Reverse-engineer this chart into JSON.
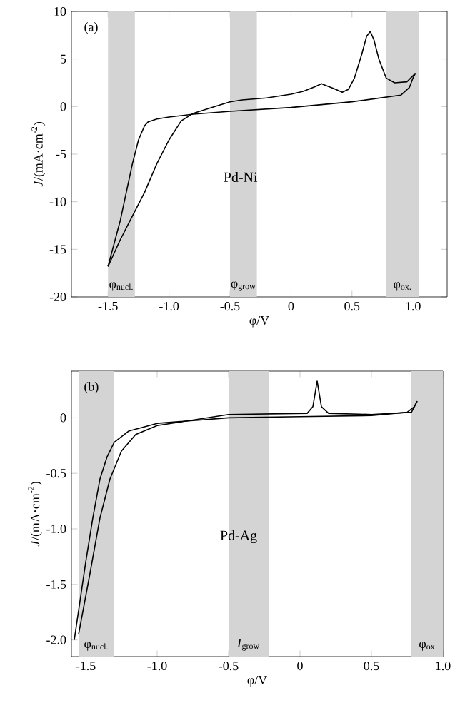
{
  "chart_data": [
    {
      "type": "line",
      "xlabel": "φ/V",
      "ylabel": "*J*/(mA·cm$^{-2}$)",
      "xlim": [
        -1.8,
        1.28
      ],
      "ylim": [
        -20,
        10
      ],
      "xticks": [
        {
          "value": -1.5,
          "label": "-1.5"
        },
        {
          "value": -1.0,
          "label": "-1.0"
        },
        {
          "value": -0.5,
          "label": "-0.5"
        },
        0,
        0.5,
        {
          "value": 1.0,
          "label": "1.0"
        }
      ],
      "yticks": [
        -20,
        -15,
        -10,
        -5,
        0,
        5,
        10
      ],
      "series": [
        {
          "color": "#000000",
          "x": [
            -1.5,
            -1.4,
            -1.3,
            -1.25,
            -1.2,
            -1.17,
            -1.1,
            -1.0,
            -0.8,
            -0.5,
            0,
            0.5,
            0.9,
            0.97,
            1.0,
            1.02
          ],
          "values": [
            -16.8,
            -12,
            -6,
            -3.5,
            -2,
            -1.6,
            -1.3,
            -1.1,
            -0.8,
            -0.5,
            -0.1,
            0.5,
            1.2,
            2.0,
            3.0,
            3.5
          ]
        },
        {
          "color": "#000000",
          "x": [
            1.02,
            0.95,
            0.85,
            0.78,
            0.72,
            0.68,
            0.65,
            0.62,
            0.58,
            0.52,
            0.47,
            0.42,
            0.35,
            0.27,
            0.25,
            0.2,
            0.1,
            0,
            -0.2,
            -0.4,
            -0.5,
            -0.6,
            -0.7,
            -0.8,
            -0.9,
            -1.0,
            -1.1,
            -1.2,
            -1.3,
            -1.4,
            -1.5
          ],
          "values": [
            3.5,
            2.6,
            2.5,
            3,
            5,
            7,
            7.9,
            7.4,
            5.5,
            3,
            1.8,
            1.5,
            1.9,
            2.3,
            2.4,
            2.1,
            1.6,
            1.3,
            0.9,
            0.7,
            0.5,
            0.1,
            -0.3,
            -0.7,
            -1.5,
            -3.5,
            -6,
            -9,
            -11.5,
            -14,
            -16.8
          ]
        }
      ],
      "bands": [
        {
          "axis": "x",
          "from": -1.5,
          "to": -1.28,
          "label": "φ$_{nucl.}$",
          "color": "#d4d4d4"
        },
        {
          "axis": "x",
          "from": -0.5,
          "to": -0.28,
          "label": "φ$_{grow}$",
          "color": "#d4d4d4"
        },
        {
          "axis": "x",
          "from": 0.78,
          "to": 1.05,
          "label": "φ$_{ox.}$",
          "color": "#d4d4d4"
        }
      ],
      "annotations": [
        "(a)",
        "Pd-Ni"
      ]
    },
    {
      "type": "line",
      "xlabel": "φ/V",
      "ylabel": "*J*/(mA·cm$^{-2}$)",
      "xlim": [
        -1.6,
        1.0
      ],
      "ylim": [
        -2.15,
        0.42
      ],
      "xticks": [
        {
          "value": -1.5,
          "label": "-1.5"
        },
        {
          "value": -1.0,
          "label": "-1.0"
        },
        {
          "value": -0.5,
          "label": "-0.5"
        },
        0,
        0.5,
        {
          "value": 1.0,
          "label": "1.0"
        }
      ],
      "yticks": [
        {
          "value": -2.0,
          "label": "-2.0"
        },
        -1.5,
        {
          "value": -1.0,
          "label": "-1.0"
        },
        -0.5,
        0
      ],
      "series": [
        {
          "color": "#000000",
          "x": [
            -1.58,
            -1.5,
            -1.45,
            -1.4,
            -1.35,
            -1.3,
            -1.2,
            -1.0,
            -0.5,
            0,
            0.5,
            0.75,
            0.8,
            0.82
          ],
          "values": [
            -2.0,
            -1.3,
            -0.9,
            -0.55,
            -0.35,
            -0.22,
            -0.12,
            -0.05,
            0.0,
            0.01,
            0.02,
            0.05,
            0.1,
            0.15
          ]
        },
        {
          "color": "#000000",
          "x": [
            0.82,
            0.78,
            0.5,
            0.2,
            0.15,
            0.12,
            0.09,
            0.05,
            -0.5,
            -1.0,
            -1.15,
            -1.25,
            -1.33,
            -1.4,
            -1.47,
            -1.55
          ],
          "values": [
            0.15,
            0.05,
            0.03,
            0.04,
            0.1,
            0.33,
            0.1,
            0.04,
            0.03,
            -0.07,
            -0.15,
            -0.3,
            -0.55,
            -0.9,
            -1.4,
            -1.95
          ]
        }
      ],
      "bands": [
        {
          "axis": "x",
          "from": -1.55,
          "to": -1.3,
          "label": "φ$_{nucl.}$",
          "color": "#d4d4d4"
        },
        {
          "axis": "x",
          "from": -0.5,
          "to": -0.22,
          "label": "*I*$_{grow}$",
          "color": "#d4d4d4"
        },
        {
          "axis": "x",
          "from": 0.78,
          "to": 1.0,
          "label": "φ$_{ox}$",
          "color": "#d4d4d4"
        }
      ],
      "annotations": [
        "(b)",
        "Pd-Ag"
      ]
    }
  ]
}
